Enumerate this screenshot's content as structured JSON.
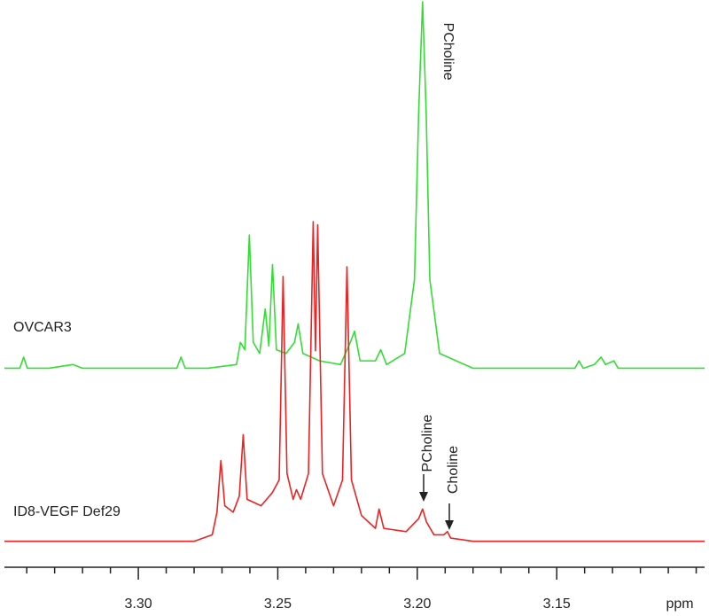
{
  "chart_data": [
    {
      "type": "line",
      "annotations": [
        "PCholine"
      ],
      "x": [
        3.348,
        3.3425,
        3.3411,
        3.3398,
        3.332,
        3.3235,
        3.32,
        3.3,
        3.2862,
        3.2847,
        3.2832,
        3.275,
        3.2648,
        3.2634,
        3.2618,
        3.2602,
        3.2588,
        3.2565,
        3.2545,
        3.2532,
        3.2519,
        3.2505,
        3.247,
        3.244,
        3.2427,
        3.241,
        3.235,
        3.2275,
        3.224,
        3.2225,
        3.2205,
        3.215,
        3.2131,
        3.211,
        3.2045,
        3.201,
        3.1995,
        3.1981,
        3.1968,
        3.1955,
        3.192,
        3.18,
        3.16,
        3.1435,
        3.142,
        3.1405,
        3.1365,
        3.1341,
        3.1325,
        3.1295,
        3.128,
        3.11,
        3.097
      ],
      "series": [
        {
          "name": "OVCAR3",
          "color": "#33dd33",
          "values": [
            1,
            1,
            4,
            1,
            1,
            2,
            1,
            1,
            1,
            4,
            1,
            1,
            2,
            8,
            6,
            37,
            8,
            5,
            17,
            7,
            29,
            6,
            5,
            8,
            13,
            5,
            3,
            2,
            8,
            11,
            3,
            3,
            6,
            2,
            5,
            25,
            70,
            100,
            70,
            25,
            5,
            1,
            1,
            1,
            3,
            1,
            2,
            4,
            2,
            3,
            1,
            1,
            1
          ]
        }
      ],
      "xlim": [
        3.348,
        3.097
      ],
      "ylim": [
        -2,
        100
      ]
    },
    {
      "type": "line",
      "annotations": [
        "PCholine",
        "Choline"
      ],
      "x": [
        3.348,
        3.33,
        3.3,
        3.28,
        3.2735,
        3.2718,
        3.2704,
        3.269,
        3.266,
        3.2638,
        3.2624,
        3.261,
        3.256,
        3.252,
        3.2495,
        3.2481,
        3.2467,
        3.2445,
        3.2433,
        3.2418,
        3.239,
        3.2373,
        3.2365,
        3.2357,
        3.234,
        3.23,
        3.2268,
        3.2252,
        3.2236,
        3.22,
        3.215,
        3.2137,
        3.212,
        3.204,
        3.1995,
        3.1981,
        3.1967,
        3.194,
        3.1905,
        3.1892,
        3.188,
        3.18,
        3.15,
        3.12,
        3.097
      ],
      "series": [
        {
          "name": "ID8-VEGF Def29",
          "color": "#ee2222",
          "values": [
            1,
            1,
            1,
            1,
            3,
            10,
            26,
            12,
            10,
            15,
            34,
            14,
            12,
            16,
            20,
            83,
            22,
            14,
            17,
            14,
            22,
            100,
            60,
            99,
            22,
            12,
            20,
            86,
            20,
            9,
            5,
            11,
            5,
            4,
            8,
            11,
            7,
            3,
            3,
            4,
            2,
            1,
            1,
            1,
            1
          ]
        }
      ],
      "xlim": [
        3.348,
        3.097
      ],
      "ylim": [
        -1,
        100
      ],
      "xticks": [
        {
          "value": 3.3,
          "label": "3.30"
        },
        3.25,
        {
          "value": 3.2,
          "label": "3.20"
        },
        3.15
      ],
      "xminorticks": [
        3.34,
        3.33,
        3.32,
        3.31,
        3.29,
        3.28,
        3.27,
        3.26,
        3.24,
        3.23,
        3.22,
        3.21,
        3.19,
        3.18,
        3.17,
        3.16,
        3.14,
        3.13,
        3.12,
        3.11,
        3.1
      ],
      "xlabel": "ppm"
    }
  ]
}
